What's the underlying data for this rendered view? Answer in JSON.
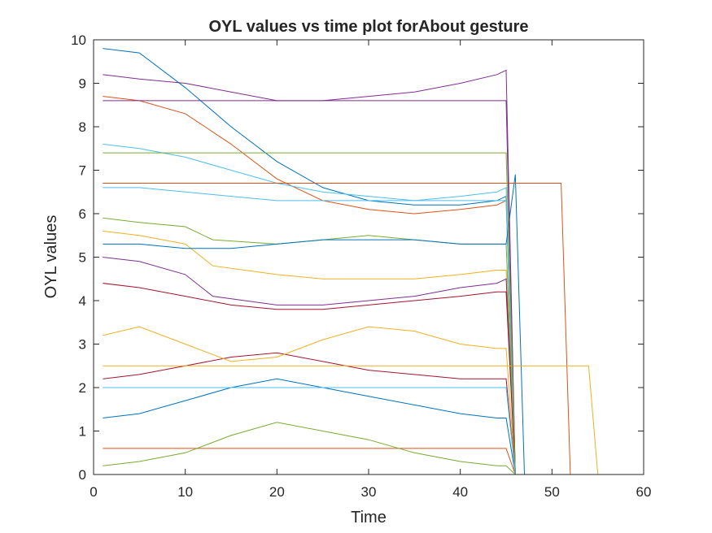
{
  "chart_data": {
    "type": "line",
    "title": "OYL values vs time plot forAbout gesture",
    "xlabel": "Time",
    "ylabel": "OYL values",
    "xlim": [
      0,
      60
    ],
    "ylim": [
      0,
      10
    ],
    "xticks": [
      "0",
      "10",
      "20",
      "30",
      "40",
      "50",
      "60"
    ],
    "yticks": [
      "0",
      "1",
      "2",
      "3",
      "4",
      "5",
      "6",
      "7",
      "8",
      "9",
      "10"
    ],
    "grid": false,
    "legend": "none",
    "colors": [
      "#0072BD",
      "#D95319",
      "#EDB120",
      "#7E2F8E",
      "#77AC30",
      "#4DBEEE",
      "#A2142F"
    ],
    "series": [
      {
        "x": [
          1,
          5,
          10,
          15,
          20,
          25,
          30,
          35,
          40,
          44,
          45,
          46
        ],
        "y": [
          9.8,
          9.7,
          8.9,
          8.0,
          7.2,
          6.6,
          6.3,
          6.2,
          6.2,
          6.3,
          6.4,
          0
        ]
      },
      {
        "x": [
          1,
          5,
          10,
          15,
          20,
          25,
          30,
          35,
          40,
          44,
          45,
          46
        ],
        "y": [
          8.7,
          8.6,
          8.3,
          7.6,
          6.8,
          6.3,
          6.1,
          6.0,
          6.1,
          6.2,
          6.3,
          0
        ]
      },
      {
        "x": [
          1,
          5,
          10,
          13,
          20,
          25,
          30,
          35,
          40,
          44,
          45,
          46
        ],
        "y": [
          5.6,
          5.5,
          5.3,
          4.8,
          4.6,
          4.5,
          4.5,
          4.5,
          4.6,
          4.7,
          4.7,
          0
        ]
      },
      {
        "x": [
          1,
          5,
          10,
          13,
          20,
          25,
          30,
          35,
          40,
          44,
          45,
          46
        ],
        "y": [
          5.0,
          4.9,
          4.6,
          4.1,
          3.9,
          3.9,
          4.0,
          4.1,
          4.3,
          4.4,
          4.5,
          0
        ]
      },
      {
        "x": [
          1,
          5,
          10,
          13,
          20,
          25,
          30,
          35,
          40,
          44,
          45,
          46
        ],
        "y": [
          5.9,
          5.8,
          5.7,
          5.4,
          5.3,
          5.4,
          5.5,
          5.4,
          5.3,
          5.3,
          5.3,
          0
        ]
      },
      {
        "x": [
          1,
          5,
          10,
          15,
          20,
          25,
          30,
          35,
          40,
          44,
          45,
          46
        ],
        "y": [
          7.6,
          7.5,
          7.3,
          7.0,
          6.7,
          6.5,
          6.4,
          6.3,
          6.4,
          6.5,
          6.6,
          0
        ]
      },
      {
        "x": [
          1,
          5,
          10,
          15,
          20,
          25,
          30,
          35,
          40,
          44,
          45,
          46
        ],
        "y": [
          2.2,
          2.3,
          2.5,
          2.7,
          2.8,
          2.6,
          2.4,
          2.3,
          2.2,
          2.2,
          2.2,
          0
        ]
      },
      {
        "x": [
          1,
          5,
          10,
          15,
          20,
          25,
          30,
          35,
          40,
          44,
          45,
          46
        ],
        "y": [
          1.3,
          1.4,
          1.7,
          2.0,
          2.2,
          2.0,
          1.8,
          1.6,
          1.4,
          1.3,
          1.3,
          0
        ]
      },
      {
        "x": [
          1,
          5,
          10,
          15,
          20,
          25,
          30,
          35,
          40,
          44,
          45,
          46
        ],
        "y": [
          0.6,
          0.6,
          0.6,
          0.6,
          0.6,
          0.6,
          0.6,
          0.6,
          0.6,
          0.6,
          0.6,
          0
        ]
      },
      {
        "x": [
          1,
          5,
          10,
          15,
          20,
          25,
          30,
          35,
          40,
          44,
          45,
          46
        ],
        "y": [
          3.2,
          3.4,
          3.0,
          2.6,
          2.7,
          3.1,
          3.4,
          3.3,
          3.0,
          2.9,
          2.9,
          0
        ]
      },
      {
        "x": [
          1,
          5,
          10,
          15,
          20,
          25,
          30,
          35,
          40,
          44,
          45,
          46
        ],
        "y": [
          9.2,
          9.1,
          9.0,
          8.8,
          8.6,
          8.6,
          8.7,
          8.8,
          9.0,
          9.2,
          9.3,
          0
        ]
      },
      {
        "x": [
          1,
          5,
          10,
          15,
          20,
          25,
          30,
          35,
          40,
          44,
          45,
          46
        ],
        "y": [
          0.2,
          0.3,
          0.5,
          0.9,
          1.2,
          1.0,
          0.8,
          0.5,
          0.3,
          0.2,
          0.2,
          0
        ]
      },
      {
        "x": [
          1,
          5,
          10,
          15,
          20,
          25,
          30,
          35,
          40,
          44,
          45,
          46
        ],
        "y": [
          6.6,
          6.6,
          6.5,
          6.4,
          6.3,
          6.3,
          6.3,
          6.3,
          6.3,
          6.3,
          6.3,
          0
        ]
      },
      {
        "x": [
          1,
          5,
          10,
          15,
          20,
          25,
          30,
          35,
          40,
          44,
          45,
          46
        ],
        "y": [
          4.4,
          4.3,
          4.1,
          3.9,
          3.8,
          3.8,
          3.9,
          4.0,
          4.1,
          4.2,
          4.2,
          0
        ]
      },
      {
        "x": [
          1,
          5,
          10,
          15,
          20,
          25,
          30,
          35,
          40,
          45,
          46,
          47
        ],
        "y": [
          5.3,
          5.3,
          5.2,
          5.2,
          5.3,
          5.4,
          5.4,
          5.4,
          5.3,
          5.3,
          6.9,
          0
        ]
      },
      {
        "x": [
          1,
          45,
          46,
          51,
          52
        ],
        "y": [
          6.7,
          6.7,
          6.7,
          6.7,
          0
        ]
      },
      {
        "x": [
          1,
          45,
          46,
          54,
          55
        ],
        "y": [
          2.5,
          2.5,
          2.5,
          2.5,
          0
        ]
      },
      {
        "x": [
          1,
          45,
          46
        ],
        "y": [
          8.6,
          8.6,
          0
        ]
      },
      {
        "x": [
          1,
          45,
          46
        ],
        "y": [
          7.4,
          7.4,
          0
        ]
      },
      {
        "x": [
          1,
          45,
          46
        ],
        "y": [
          2.0,
          2.0,
          0
        ]
      }
    ]
  }
}
